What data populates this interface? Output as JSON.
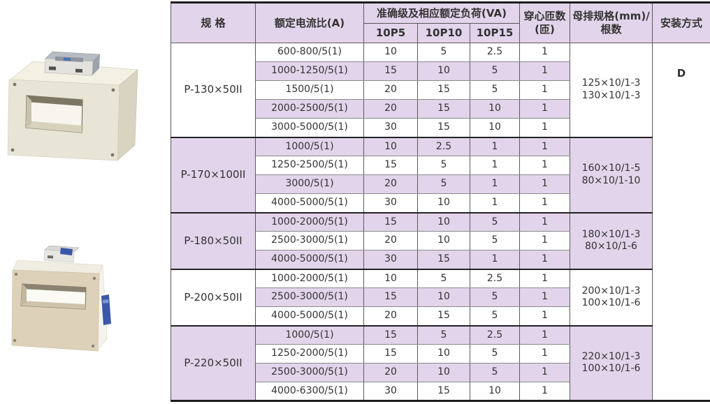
{
  "colors": {
    "row_shade": "#e2d4ea",
    "header_fill": "#e2d4ea",
    "grid_line": "#5a5a5a",
    "heavy_line": "#1c1c1c",
    "text": "#333333",
    "blue_label": "#3c57a8"
  },
  "products": [
    {
      "id": "current-transformer-photo-1"
    },
    {
      "id": "current-transformer-photo-2"
    }
  ],
  "table": {
    "header": {
      "spec": "规 格",
      "ratio": "额定电流比(A)",
      "accuracy_group": "准确级及相应额定负荷(VA)",
      "accuracy_cols": [
        "10P5",
        "10P10",
        "10P15"
      ],
      "turns": "穿心匝数(匝)",
      "busbar": "母排规格(mm)/根数",
      "install": "安装方式"
    },
    "install_value": "D",
    "groups": [
      {
        "spec": "P-130×50II",
        "busbar": [
          "125×10/1-3",
          "130×10/1-3"
        ],
        "rows": [
          [
            "600-800/5(1)",
            "10",
            "5",
            "2.5",
            "1"
          ],
          [
            "1000-1250/5(1)",
            "15",
            "10",
            "5",
            "1"
          ],
          [
            "1500/5(1)",
            "20",
            "15",
            "5",
            "1"
          ],
          [
            "2000-2500/5(1)",
            "20",
            "15",
            "10",
            "1"
          ],
          [
            "3000-5000/5(1)",
            "30",
            "15",
            "10",
            "1"
          ]
        ]
      },
      {
        "spec": "P-170×100II",
        "busbar": [
          "160×10/1-5",
          "80×10/1-10"
        ],
        "rows": [
          [
            "1000/5(1)",
            "10",
            "2.5",
            "1",
            "1"
          ],
          [
            "1250-2500/5(1)",
            "15",
            "5",
            "1",
            "1"
          ],
          [
            "3000/5(1)",
            "20",
            "5",
            "1",
            "1"
          ],
          [
            "4000-5000/5(1)",
            "30",
            "10",
            "1",
            "1"
          ]
        ]
      },
      {
        "spec": "P-180×50II",
        "busbar": [
          "180×10/1-3",
          "80×10/1-6"
        ],
        "rows": [
          [
            "1000-2000/5(1)",
            "15",
            "10",
            "5",
            "1"
          ],
          [
            "2500-3000/5(1)",
            "20",
            "10",
            "5",
            "1"
          ],
          [
            "4000-5000/5(1)",
            "30",
            "15",
            "1",
            "1"
          ]
        ]
      },
      {
        "spec": "P-200×50II",
        "busbar": [
          "200×10/1-3",
          "100×10/1-6"
        ],
        "rows": [
          [
            "1000-2000/5(1)",
            "10",
            "5",
            "2.5",
            "1"
          ],
          [
            "2500-3000/5(1)",
            "15",
            "10",
            "5",
            "1"
          ],
          [
            "4000-5000/5(1)",
            "20",
            "15",
            "5",
            "1"
          ]
        ]
      },
      {
        "spec": "P-220×50II",
        "busbar": [
          "220×10/1-3",
          "100×10/1-6"
        ],
        "rows": [
          [
            "1000/5(1)",
            "15",
            "5",
            "2.5",
            "1"
          ],
          [
            "1250-2000/5(1)",
            "15",
            "10",
            "5",
            "1"
          ],
          [
            "2500-3000/5(1)",
            "20",
            "10",
            "5",
            "1"
          ],
          [
            "4000-6300/5(1)",
            "30",
            "15",
            "10",
            "1"
          ]
        ]
      }
    ]
  }
}
